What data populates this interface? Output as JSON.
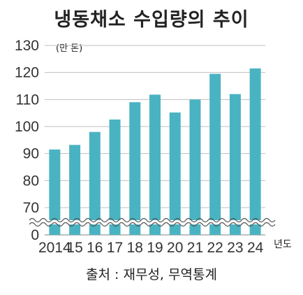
{
  "chart_data": {
    "type": "bar",
    "title": "냉동채소 수입량의 추이",
    "unit_label": "(만 톤)",
    "x_unit_label": "년도",
    "source": "출처 : 재무성, 무역통계",
    "categories": [
      "2014",
      "15",
      "16",
      "17",
      "18",
      "19",
      "20",
      "21",
      "22",
      "23",
      "24"
    ],
    "values": [
      91.5,
      93.2,
      98.0,
      102.6,
      109.0,
      111.8,
      105.2,
      110.0,
      119.5,
      112.0,
      121.5
    ],
    "yticks": [
      "0",
      "70",
      "80",
      "90",
      "100",
      "110",
      "120",
      "130"
    ],
    "ylim": [
      65,
      130
    ],
    "axis_break": true,
    "grid": true,
    "bar_color": "#4ab3c2",
    "grid_color": "#bfbfbf"
  }
}
